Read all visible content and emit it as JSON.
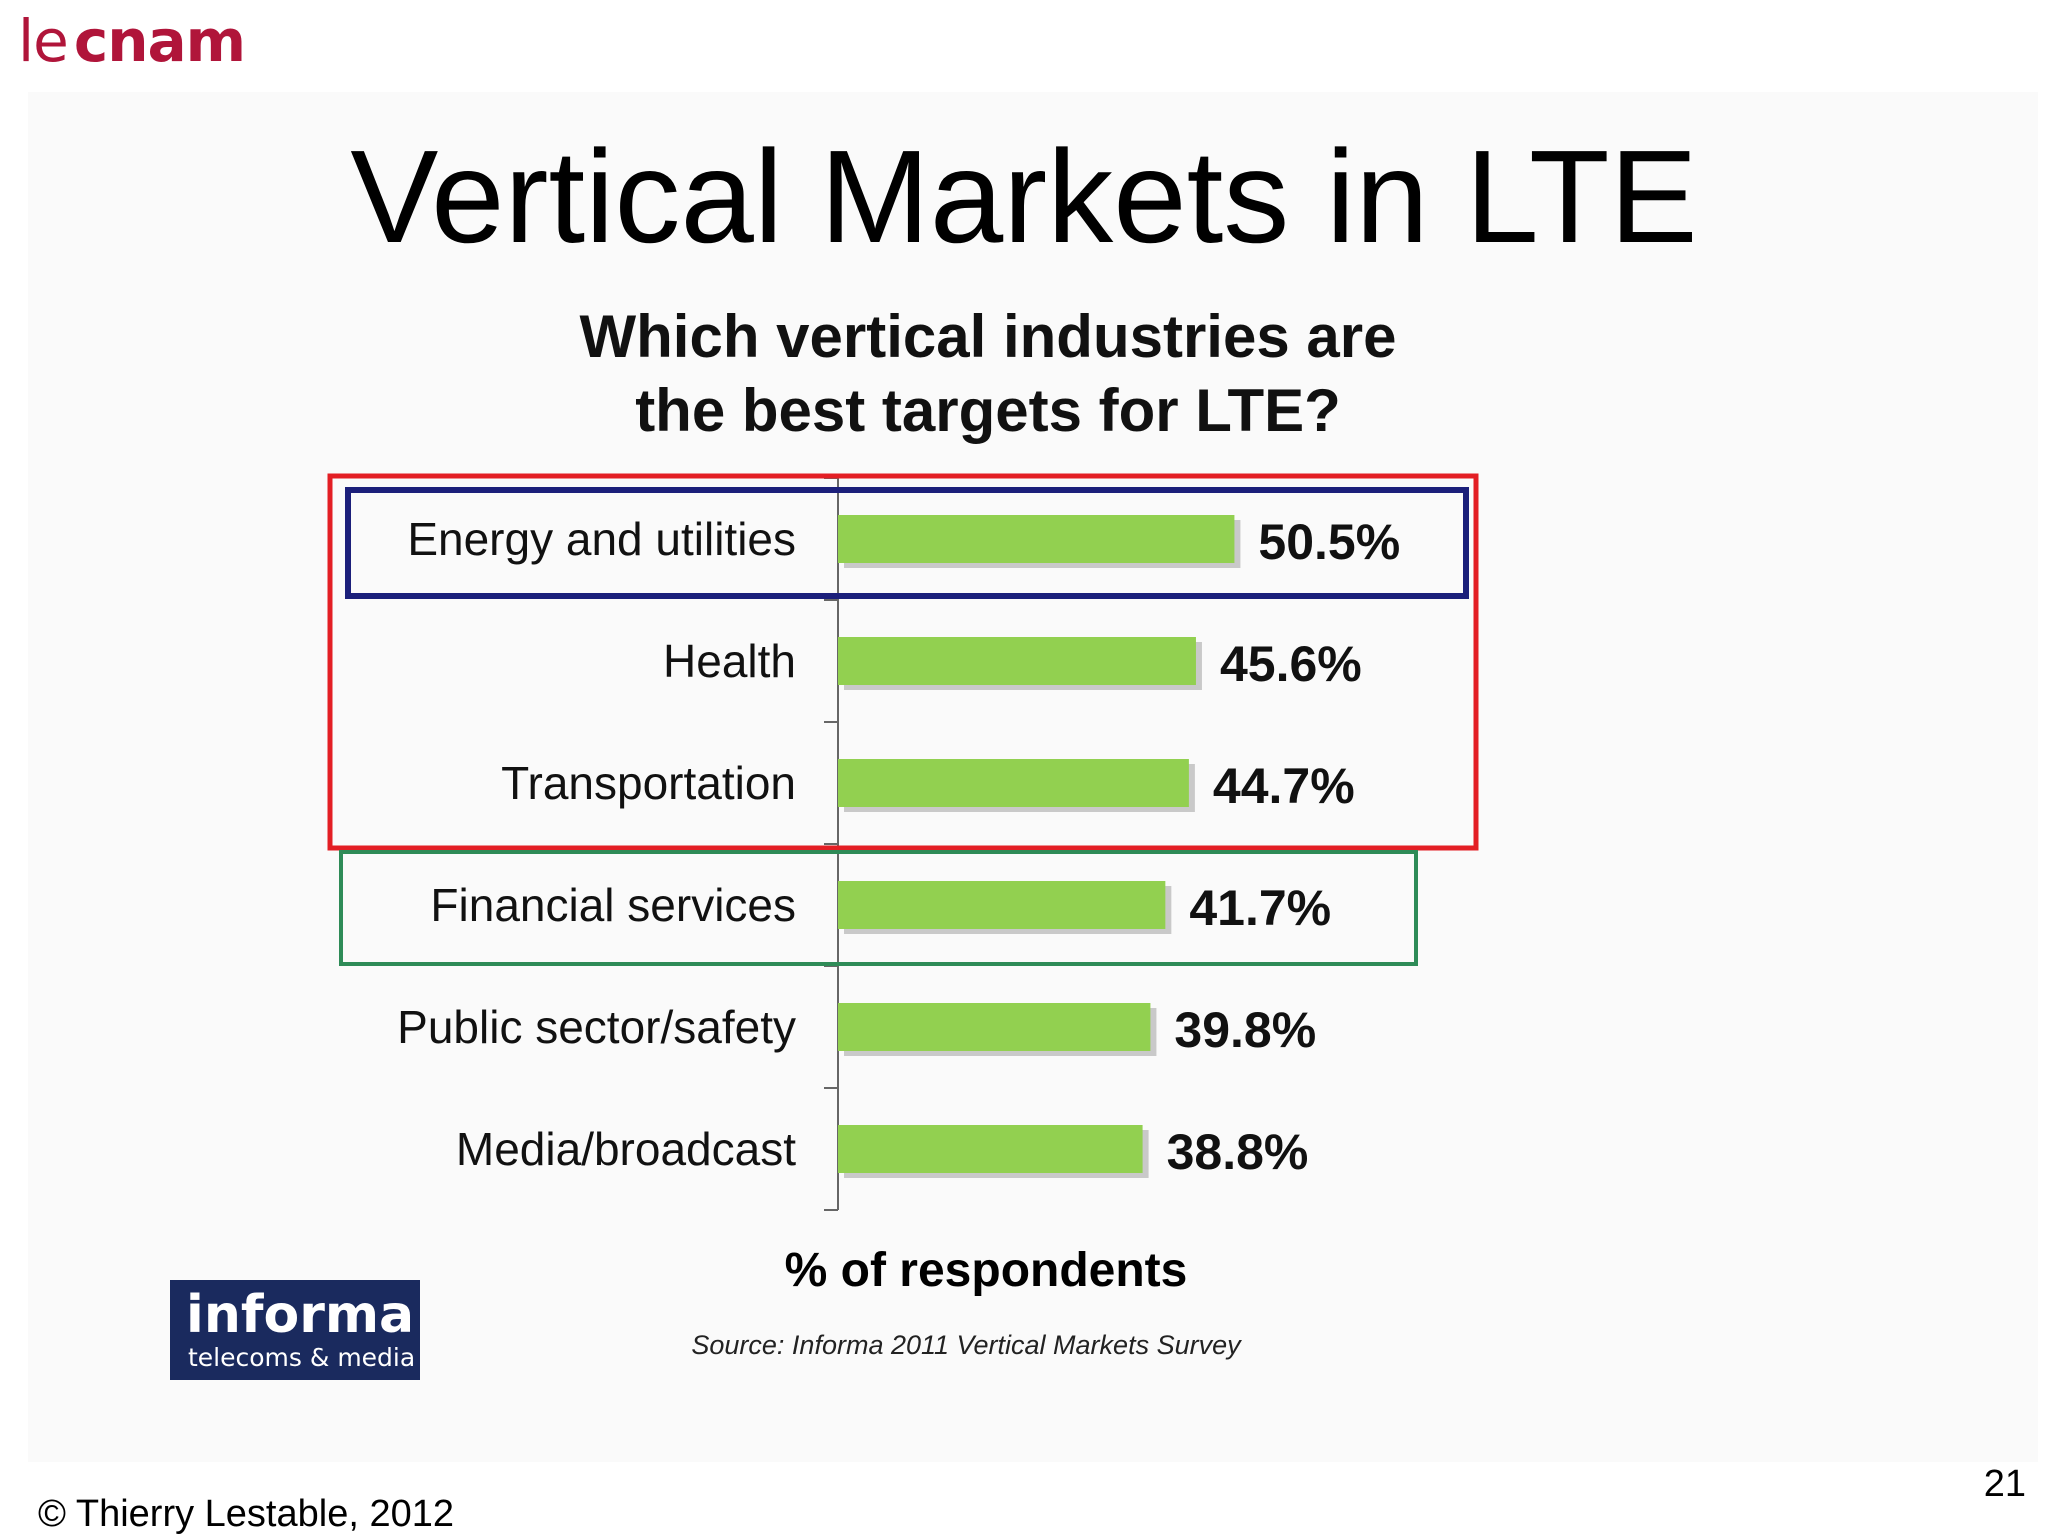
{
  "logo": {
    "prefix": "le",
    "name": "cnam",
    "color": "#b0153a"
  },
  "slide": {
    "title": "Vertical Markets in LTE",
    "copyright": "© Thierry Lestable, 2012",
    "page_number": "21"
  },
  "chart_data": {
    "type": "bar",
    "orientation": "horizontal",
    "title_lines": [
      "Which vertical industries are",
      "the best targets for LTE?"
    ],
    "xlabel": "% of respondents",
    "ylabel": "",
    "categories": [
      "Energy and utilities",
      "Health",
      "Transportation",
      "Financial services",
      "Public sector/safety",
      "Media/broadcast"
    ],
    "values": [
      50.5,
      45.6,
      44.7,
      41.7,
      39.8,
      38.8
    ],
    "value_labels": [
      "50.5%",
      "45.6%",
      "44.7%",
      "41.7%",
      "39.8%",
      "38.8%"
    ],
    "bar_color": "#92d050",
    "grid": false,
    "highlight_boxes": [
      {
        "categories": [
          "Energy and utilities"
        ],
        "color": "#1b1f7a"
      },
      {
        "categories": [
          "Energy and utilities",
          "Health",
          "Transportation"
        ],
        "color": "#e31e24"
      },
      {
        "categories": [
          "Financial services"
        ],
        "color": "#2e8b57"
      }
    ],
    "source": "Source: Informa 2011 Vertical Markets Survey"
  },
  "publisher_logo": {
    "name": "informa",
    "tagline": "telecoms & media",
    "color": "#1a2a5e"
  }
}
